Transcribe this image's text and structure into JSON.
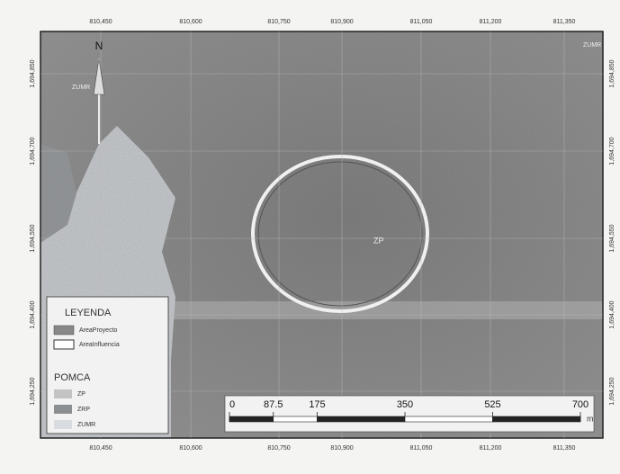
{
  "map": {
    "x_labels": [
      "810,450",
      "810,600",
      "810,750",
      "810,900",
      "811,050",
      "811,200",
      "811,350"
    ],
    "y_labels": [
      "1,694,850",
      "1,694,700",
      "1,694,550",
      "1,694,400",
      "1,694,250"
    ],
    "north": "N",
    "zone_labels": [
      "ZUMR",
      "ZUMR",
      "ZP"
    ]
  },
  "legend": {
    "title": "LEYENDA",
    "items": [
      "AreaProyecto",
      "AreaInfluencia"
    ],
    "section": "POMCA",
    "zones": [
      "ZP",
      "ZRP",
      "ZUMR"
    ]
  },
  "scale_bar": {
    "ticks": [
      0,
      87.5,
      175,
      350,
      525,
      700
    ],
    "unit": "m"
  }
}
